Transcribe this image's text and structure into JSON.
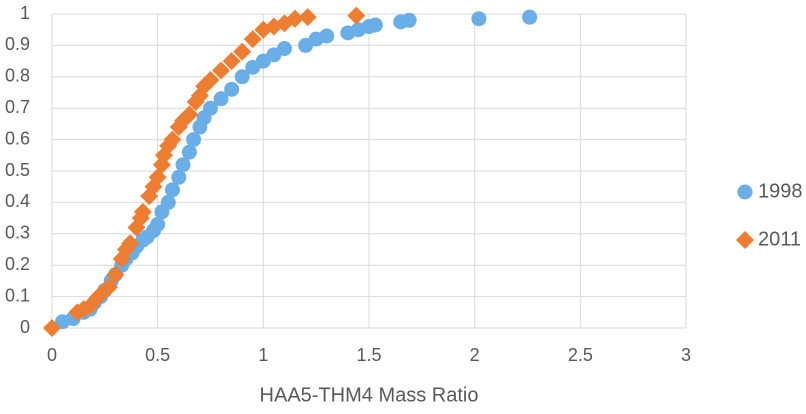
{
  "chart_data": {
    "type": "scatter",
    "x_label": "HAA5-THM4 Mass Ratio",
    "xlim": [
      0,
      3
    ],
    "xticks": [
      0,
      0.5,
      1,
      1.5,
      2,
      2.5,
      3
    ],
    "ylim": [
      0,
      1
    ],
    "yticks": [
      0,
      0.1,
      0.2,
      0.3,
      0.4,
      0.5,
      0.6,
      0.7,
      0.8,
      0.9,
      1
    ],
    "grid": true,
    "legend": "right",
    "series": [
      {
        "name": "1998",
        "color": "#6aaee8",
        "marker": "circle",
        "x": [
          0.05,
          0.1,
          0.15,
          0.18,
          0.2,
          0.23,
          0.25,
          0.28,
          0.3,
          0.33,
          0.35,
          0.38,
          0.4,
          0.43,
          0.45,
          0.48,
          0.5,
          0.52,
          0.55,
          0.57,
          0.6,
          0.62,
          0.65,
          0.67,
          0.7,
          0.72,
          0.75,
          0.8,
          0.85,
          0.9,
          0.95,
          1.0,
          1.05,
          1.1,
          1.2,
          1.25,
          1.3,
          1.4,
          1.45,
          1.5,
          1.53,
          1.65,
          1.69,
          2.02,
          2.26
        ],
        "values": [
          0.02,
          0.03,
          0.05,
          0.06,
          0.08,
          0.1,
          0.12,
          0.15,
          0.17,
          0.2,
          0.22,
          0.24,
          0.26,
          0.28,
          0.29,
          0.31,
          0.33,
          0.37,
          0.4,
          0.44,
          0.48,
          0.52,
          0.56,
          0.6,
          0.64,
          0.67,
          0.7,
          0.73,
          0.76,
          0.8,
          0.83,
          0.85,
          0.87,
          0.89,
          0.9,
          0.92,
          0.93,
          0.94,
          0.95,
          0.96,
          0.965,
          0.975,
          0.98,
          0.985,
          0.99
        ]
      },
      {
        "name": "2011",
        "color": "#ed7d31",
        "marker": "diamond",
        "x": [
          0,
          0.12,
          0.15,
          0.18,
          0.22,
          0.25,
          0.27,
          0.3,
          0.33,
          0.35,
          0.37,
          0.4,
          0.42,
          0.43,
          0.46,
          0.48,
          0.5,
          0.52,
          0.53,
          0.55,
          0.57,
          0.6,
          0.62,
          0.65,
          0.68,
          0.7,
          0.72,
          0.75,
          0.8,
          0.85,
          0.9,
          0.95,
          1.0,
          1.05,
          1.1,
          1.15,
          1.21,
          1.44
        ],
        "values": [
          0,
          0.05,
          0.06,
          0.07,
          0.1,
          0.12,
          0.13,
          0.17,
          0.22,
          0.25,
          0.27,
          0.32,
          0.35,
          0.37,
          0.42,
          0.45,
          0.48,
          0.52,
          0.55,
          0.58,
          0.6,
          0.64,
          0.66,
          0.68,
          0.72,
          0.74,
          0.77,
          0.79,
          0.82,
          0.85,
          0.88,
          0.92,
          0.95,
          0.96,
          0.97,
          0.985,
          0.99,
          0.995
        ]
      }
    ]
  }
}
